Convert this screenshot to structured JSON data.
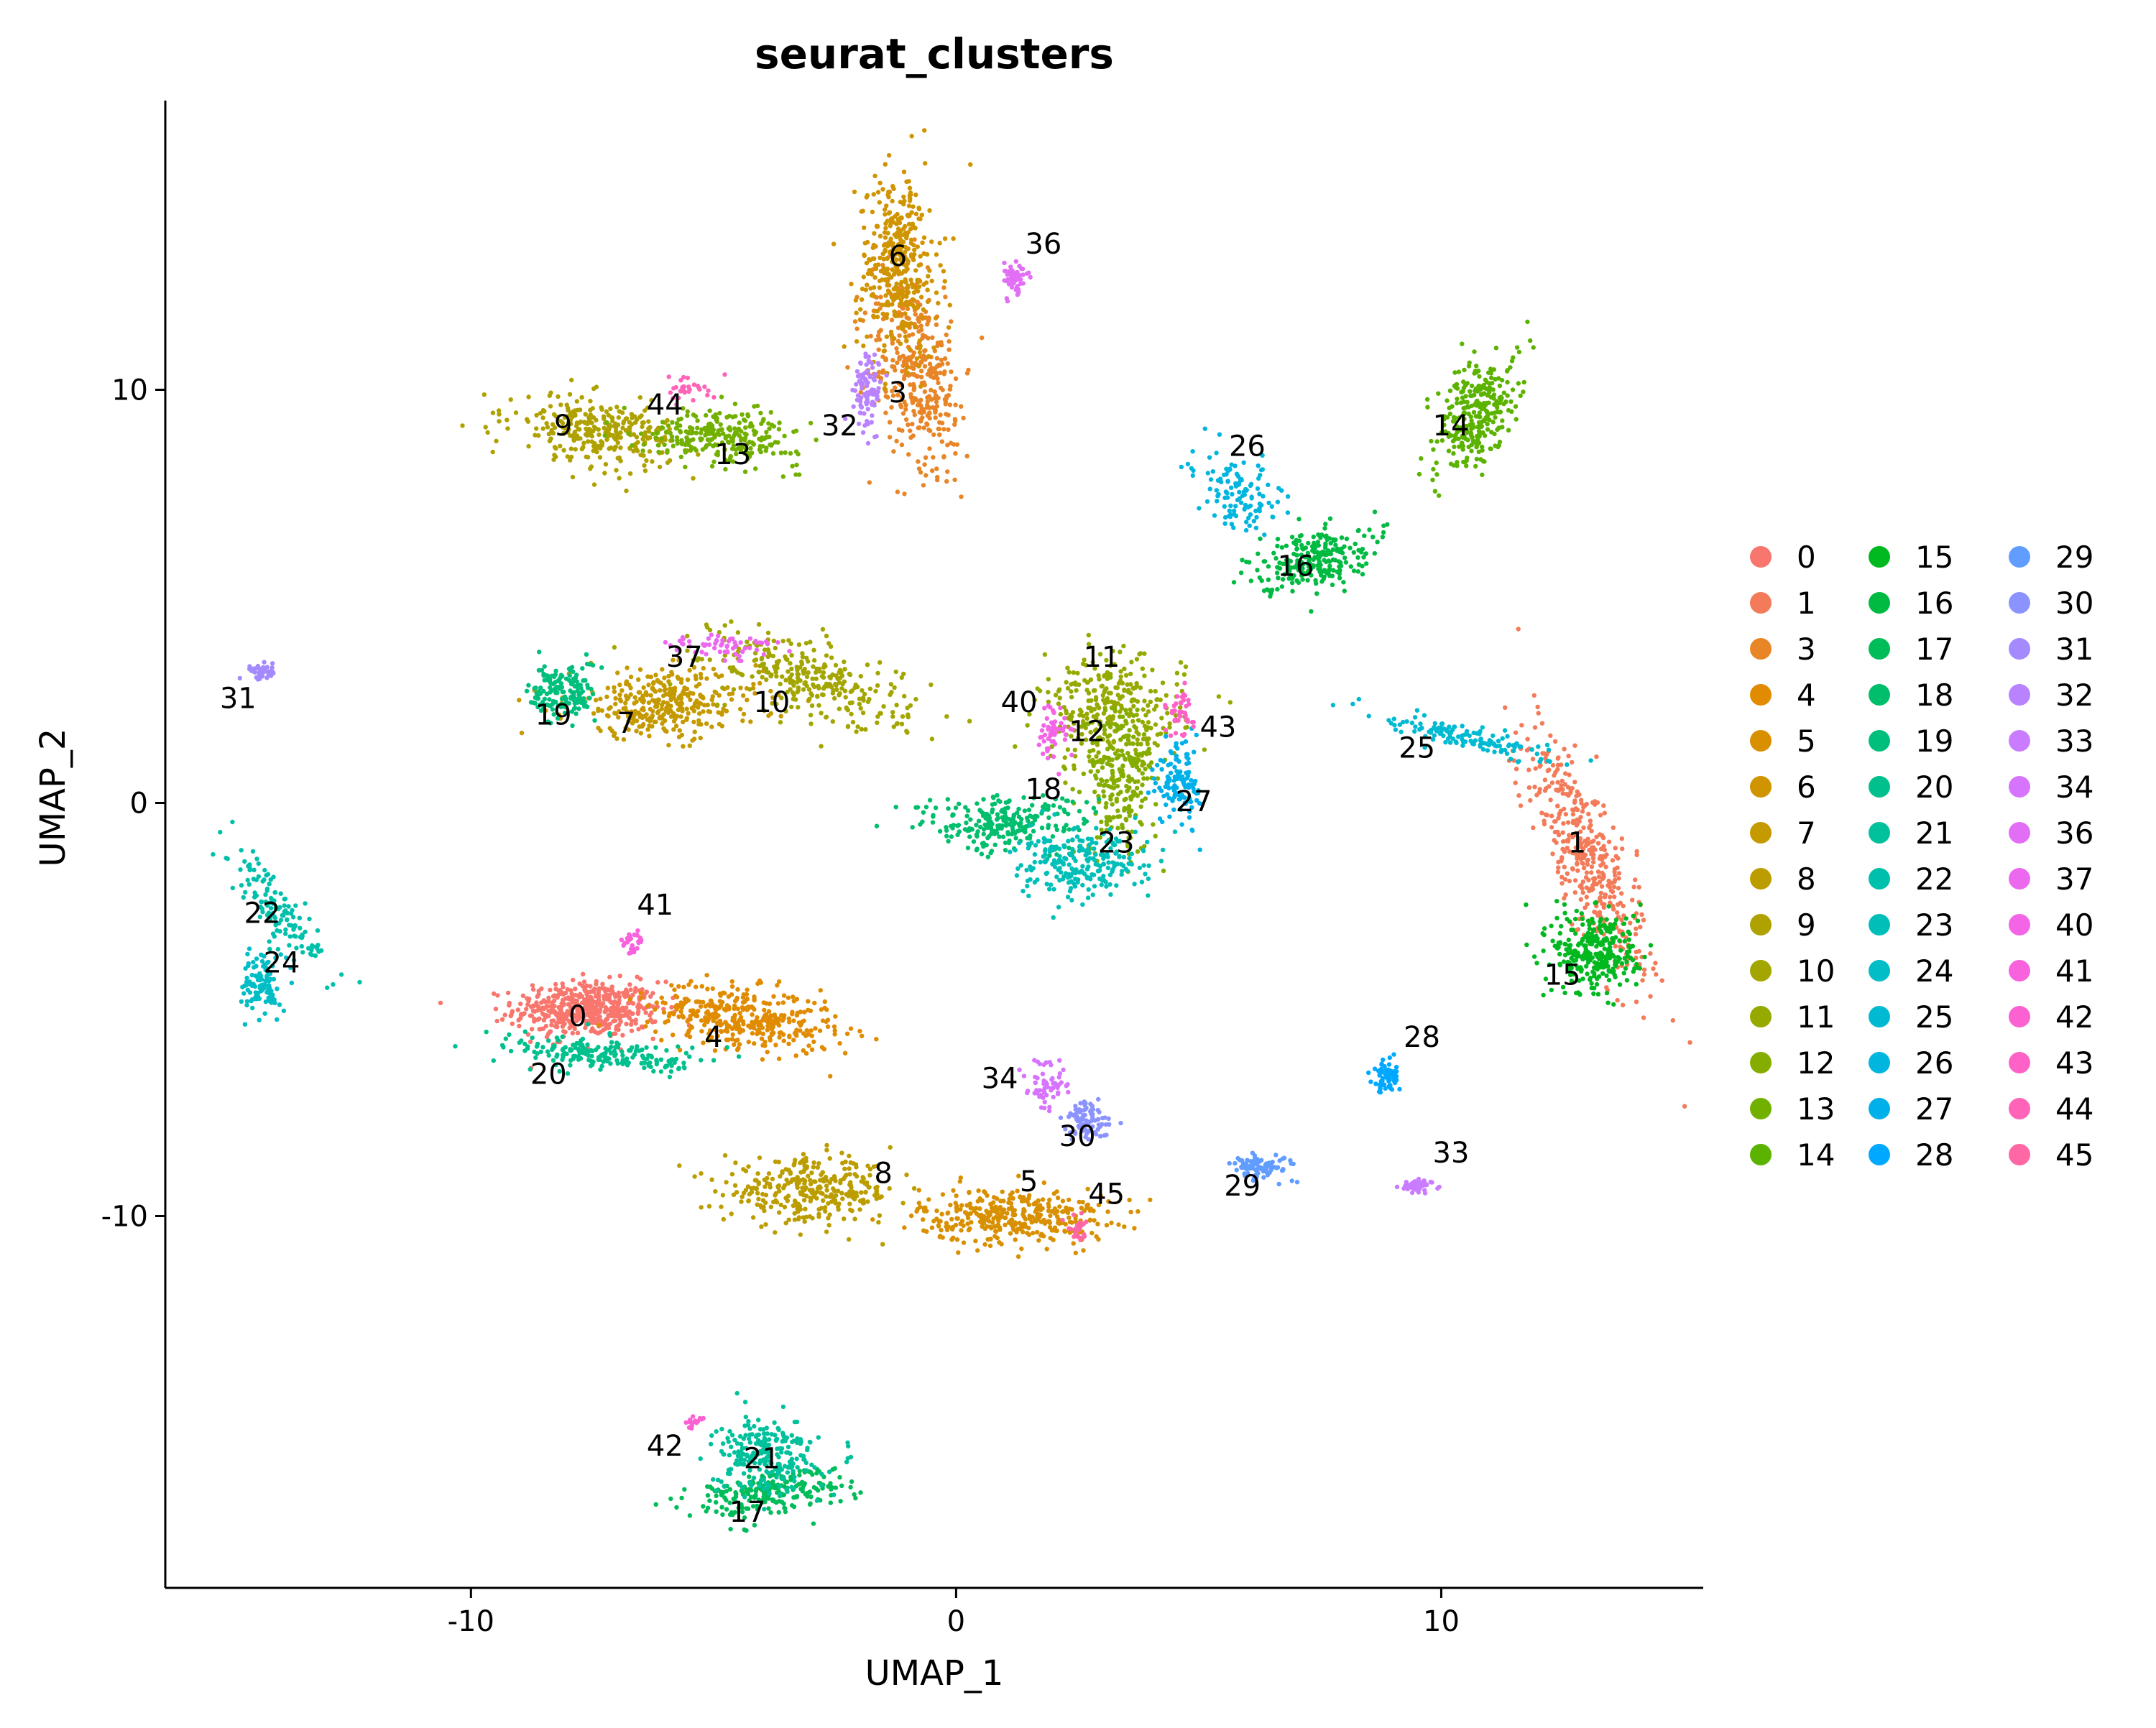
{
  "chart_data": {
    "type": "scatter",
    "title": "seurat_clusters",
    "xlabel": "UMAP_1",
    "ylabel": "UMAP_2",
    "xlim": [
      -16.3,
      15.4
    ],
    "ylim": [
      -19.0,
      17.0
    ],
    "xticks": [
      {
        "value": -10,
        "label": "-10"
      },
      {
        "value": 0,
        "label": "0"
      },
      {
        "value": 10,
        "label": "10"
      }
    ],
    "yticks": [
      {
        "value": 10,
        "label": "10"
      },
      {
        "value": 0,
        "label": "0"
      },
      {
        "value": -10,
        "label": "-10"
      }
    ],
    "grid": false,
    "legend_position": "right",
    "legend_columns": 3,
    "clusters": [
      {
        "id": "0",
        "color": "#F8766D",
        "label_xy": [
          -7.8,
          -5.4
        ],
        "center": [
          -7.6,
          -5.0
        ],
        "spread": [
          1.0,
          0.45
        ],
        "n": 520,
        "rot": 0
      },
      {
        "id": "1",
        "color": "#F37B59",
        "label_xy": [
          12.8,
          -1.2
        ],
        "center": [
          13.0,
          -1.3
        ],
        "spread": [
          0.45,
          2.2
        ],
        "n": 420,
        "rot": 20
      },
      {
        "id": "3",
        "color": "#E88526",
        "label_xy": [
          -1.2,
          9.7
        ],
        "center": [
          -0.8,
          10.5
        ],
        "spread": [
          0.6,
          1.6
        ],
        "n": 380,
        "rot": 10
      },
      {
        "id": "4",
        "color": "#E08B00",
        "label_xy": [
          -5.0,
          -5.9
        ],
        "center": [
          -4.4,
          -5.2
        ],
        "spread": [
          1.3,
          0.5
        ],
        "n": 380,
        "rot": -10
      },
      {
        "id": "5",
        "color": "#D89000",
        "label_xy": [
          1.5,
          -9.4
        ],
        "center": [
          1.2,
          -10.0
        ],
        "spread": [
          1.3,
          0.45
        ],
        "n": 360,
        "rot": 0
      },
      {
        "id": "6",
        "color": "#CF9400",
        "label_xy": [
          -1.2,
          13.0
        ],
        "center": [
          -1.2,
          13.0
        ],
        "spread": [
          0.55,
          1.5
        ],
        "n": 380,
        "rot": 0
      },
      {
        "id": "7",
        "color": "#C59900",
        "label_xy": [
          -6.8,
          1.7
        ],
        "center": [
          -6.0,
          2.4
        ],
        "spread": [
          1.3,
          0.55
        ],
        "n": 340,
        "rot": 0
      },
      {
        "id": "8",
        "color": "#BB9D00",
        "label_xy": [
          -1.5,
          -9.2
        ],
        "center": [
          -3.0,
          -9.4
        ],
        "spread": [
          1.2,
          0.5
        ],
        "n": 320,
        "rot": 0
      },
      {
        "id": "9",
        "color": "#AFA100",
        "label_xy": [
          -8.1,
          8.9
        ],
        "center": [
          -7.4,
          9.0
        ],
        "spread": [
          1.1,
          0.5
        ],
        "n": 300,
        "rot": -10
      },
      {
        "id": "10",
        "color": "#A3A500",
        "label_xy": [
          -3.8,
          2.2
        ],
        "center": [
          -3.0,
          3.0
        ],
        "spread": [
          1.5,
          0.6
        ],
        "n": 300,
        "rot": -20
      },
      {
        "id": "11",
        "color": "#95A900",
        "label_xy": [
          3.0,
          3.3
        ],
        "center": [
          3.2,
          2.2
        ],
        "spread": [
          1.0,
          0.9
        ],
        "n": 300,
        "rot": 0
      },
      {
        "id": "12",
        "color": "#85AD00",
        "label_xy": [
          2.7,
          1.5
        ],
        "center": [
          3.4,
          0.6
        ],
        "spread": [
          0.5,
          1.2
        ],
        "n": 240,
        "rot": 0
      },
      {
        "id": "13",
        "color": "#72B000",
        "label_xy": [
          -4.6,
          8.2
        ],
        "center": [
          -4.8,
          8.9
        ],
        "spread": [
          1.1,
          0.4
        ],
        "n": 260,
        "rot": -5
      },
      {
        "id": "14",
        "color": "#5BB300",
        "label_xy": [
          10.2,
          8.9
        ],
        "center": [
          10.7,
          9.4
        ],
        "spread": [
          0.45,
          1.0
        ],
        "n": 300,
        "rot": -20
      },
      {
        "id": "15",
        "color": "#00B81F",
        "label_xy": [
          12.5,
          -4.4
        ],
        "center": [
          13.2,
          -3.6
        ],
        "spread": [
          0.6,
          0.7
        ],
        "n": 300,
        "rot": 0
      },
      {
        "id": "16",
        "color": "#00BA42",
        "label_xy": [
          7.0,
          5.5
        ],
        "center": [
          7.3,
          5.9
        ],
        "spread": [
          0.8,
          0.45
        ],
        "n": 240,
        "rot": 20
      },
      {
        "id": "17",
        "color": "#00BC59",
        "label_xy": [
          -4.3,
          -17.4
        ],
        "center": [
          -3.9,
          -16.7
        ],
        "spread": [
          1.1,
          0.35
        ],
        "n": 230,
        "rot": 10
      },
      {
        "id": "18",
        "color": "#00BE6C",
        "label_xy": [
          1.8,
          0.1
        ],
        "center": [
          1.0,
          -0.5
        ],
        "spread": [
          1.2,
          0.45
        ],
        "n": 240,
        "rot": 0
      },
      {
        "id": "19",
        "color": "#00BF7D",
        "label_xy": [
          -8.3,
          1.9
        ],
        "center": [
          -8.1,
          2.7
        ],
        "spread": [
          0.45,
          0.5
        ],
        "n": 160,
        "rot": 0
      },
      {
        "id": "20",
        "color": "#00C08D",
        "label_xy": [
          -8.4,
          -6.8
        ],
        "center": [
          -7.2,
          -6.1
        ],
        "spread": [
          1.4,
          0.25
        ],
        "n": 200,
        "rot": -5
      },
      {
        "id": "21",
        "color": "#00C19C",
        "label_xy": [
          -4.0,
          -16.1
        ],
        "center": [
          -3.9,
          -15.8
        ],
        "spread": [
          0.7,
          0.6
        ],
        "n": 240,
        "rot": 0
      },
      {
        "id": "22",
        "color": "#00C0AB",
        "label_xy": [
          -14.3,
          -2.9
        ],
        "center": [
          -14.0,
          -2.6
        ],
        "spread": [
          0.3,
          1.1
        ],
        "n": 140,
        "rot": 30
      },
      {
        "id": "23",
        "color": "#00BFB9",
        "label_xy": [
          3.3,
          -1.2
        ],
        "center": [
          2.6,
          -1.5
        ],
        "spread": [
          0.9,
          0.55
        ],
        "n": 240,
        "rot": 0
      },
      {
        "id": "24",
        "color": "#00BDC6",
        "label_xy": [
          -13.9,
          -4.1
        ],
        "center": [
          -14.3,
          -4.4
        ],
        "spread": [
          0.25,
          0.5
        ],
        "n": 110,
        "rot": 0
      },
      {
        "id": "25",
        "color": "#00BAD2",
        "label_xy": [
          9.5,
          1.1
        ],
        "center": [
          10.6,
          1.6
        ],
        "spread": [
          1.2,
          0.2
        ],
        "n": 130,
        "rot": -15
      },
      {
        "id": "26",
        "color": "#00B6DE",
        "label_xy": [
          6.0,
          8.4
        ],
        "center": [
          5.8,
          7.5
        ],
        "spread": [
          0.5,
          0.7
        ],
        "n": 120,
        "rot": 35
      },
      {
        "id": "27",
        "color": "#00B0E8",
        "label_xy": [
          4.9,
          -0.2
        ],
        "center": [
          4.6,
          0.5
        ],
        "spread": [
          0.3,
          0.7
        ],
        "n": 120,
        "rot": 0
      },
      {
        "id": "28",
        "color": "#00A9FF",
        "label_xy": [
          9.6,
          -5.9
        ],
        "center": [
          8.9,
          -6.6
        ],
        "spread": [
          0.2,
          0.25
        ],
        "n": 80,
        "rot": 0
      },
      {
        "id": "29",
        "color": "#619CFF",
        "label_xy": [
          5.9,
          -9.5
        ],
        "center": [
          6.3,
          -8.8
        ],
        "spread": [
          0.4,
          0.2
        ],
        "n": 90,
        "rot": 0
      },
      {
        "id": "30",
        "color": "#8B93FF",
        "label_xy": [
          2.5,
          -8.3
        ],
        "center": [
          2.7,
          -7.7
        ],
        "spread": [
          0.35,
          0.3
        ],
        "n": 90,
        "rot": 0
      },
      {
        "id": "31",
        "color": "#A58AFF",
        "label_xy": [
          -14.8,
          2.3
        ],
        "center": [
          -14.3,
          3.2
        ],
        "spread": [
          0.2,
          0.15
        ],
        "n": 40,
        "rot": 0
      },
      {
        "id": "32",
        "color": "#B983FF",
        "label_xy": [
          -2.4,
          8.9
        ],
        "center": [
          -1.8,
          10.0
        ],
        "spread": [
          0.2,
          0.6
        ],
        "n": 90,
        "rot": 0
      },
      {
        "id": "33",
        "color": "#C97CFF",
        "label_xy": [
          10.2,
          -8.7
        ],
        "center": [
          9.5,
          -9.3
        ],
        "spread": [
          0.2,
          0.12
        ],
        "n": 50,
        "rot": 0
      },
      {
        "id": "34",
        "color": "#D774FD",
        "label_xy": [
          0.9,
          -6.9
        ],
        "center": [
          1.9,
          -6.8
        ],
        "spread": [
          0.3,
          0.4
        ],
        "n": 60,
        "rot": 0
      },
      {
        "id": "36",
        "color": "#E36EF6",
        "label_xy": [
          1.8,
          13.3
        ],
        "center": [
          1.2,
          12.7
        ],
        "spread": [
          0.2,
          0.3
        ],
        "n": 50,
        "rot": 0
      },
      {
        "id": "37",
        "color": "#EC69EF",
        "label_xy": [
          -5.6,
          3.3
        ],
        "center": [
          -4.8,
          3.8
        ],
        "spread": [
          0.8,
          0.2
        ],
        "n": 60,
        "rot": 0
      },
      {
        "id": "40",
        "color": "#F365E6",
        "label_xy": [
          1.3,
          2.2
        ],
        "center": [
          2.0,
          1.8
        ],
        "spread": [
          0.2,
          0.5
        ],
        "n": 50,
        "rot": 0
      },
      {
        "id": "41",
        "color": "#F962DD",
        "label_xy": [
          -6.2,
          -2.7
        ],
        "center": [
          -6.7,
          -3.4
        ],
        "spread": [
          0.15,
          0.2
        ],
        "n": 30,
        "rot": 0
      },
      {
        "id": "42",
        "color": "#FC61D2",
        "label_xy": [
          -6.0,
          -15.8
        ],
        "center": [
          -5.4,
          -15.0
        ],
        "spread": [
          0.15,
          0.1
        ],
        "n": 15,
        "rot": 0
      },
      {
        "id": "43",
        "color": "#FF62C6",
        "label_xy": [
          5.4,
          1.6
        ],
        "center": [
          4.6,
          2.2
        ],
        "spread": [
          0.2,
          0.4
        ],
        "n": 40,
        "rot": 0
      },
      {
        "id": "44",
        "color": "#FF64B9",
        "label_xy": [
          -6.0,
          9.4
        ],
        "center": [
          -5.6,
          10.0
        ],
        "spread": [
          0.4,
          0.2
        ],
        "n": 30,
        "rot": 0
      },
      {
        "id": "45",
        "color": "#FF67A5",
        "label_xy": [
          3.1,
          -9.7
        ],
        "center": [
          2.5,
          -10.3
        ],
        "spread": [
          0.15,
          0.2
        ],
        "n": 25,
        "rot": 0
      }
    ]
  }
}
